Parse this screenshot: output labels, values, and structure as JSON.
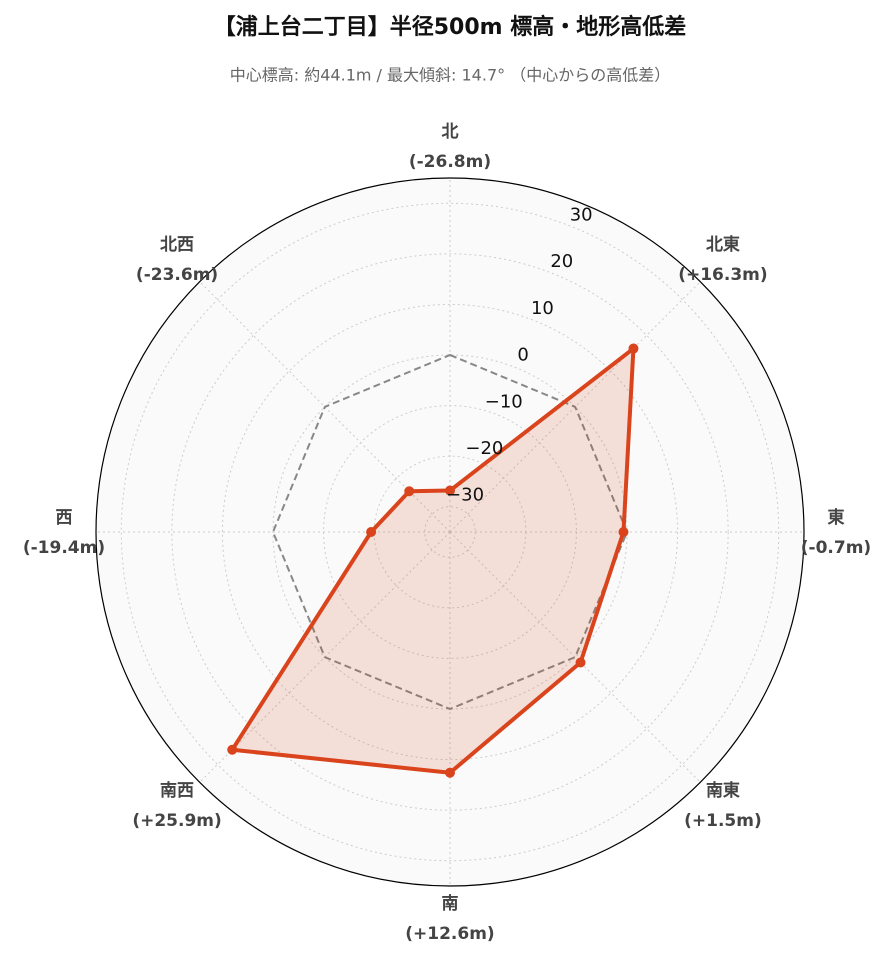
{
  "chart_data": {
    "type": "radar",
    "title": "【浦上台二丁目】半径500m 標高・地形高低差",
    "subtitle": "中心標高: 約44.1m / 最大傾斜: 14.7° （中心からの高低差）",
    "categories": [
      "北",
      "北東",
      "東",
      "南東",
      "南",
      "南西",
      "西",
      "北西"
    ],
    "values": [
      -26.8,
      16.3,
      -0.7,
      1.5,
      12.6,
      25.9,
      -19.4,
      -23.6
    ],
    "value_labels": [
      "(-26.8m)",
      "(+16.3m)",
      "(-0.7m)",
      "(+1.5m)",
      "(+12.6m)",
      "(+25.9m)",
      "(-19.4m)",
      "(-23.6m)"
    ],
    "color": "#d9441c",
    "reference_line": 0,
    "ylim": [
      -35,
      35
    ],
    "yticks": [
      {
        "value": -30,
        "label": "−30"
      },
      {
        "value": -20,
        "label": "−20"
      },
      {
        "value": -10,
        "label": "−10"
      },
      0,
      10,
      20,
      30
    ],
    "grid": true
  }
}
